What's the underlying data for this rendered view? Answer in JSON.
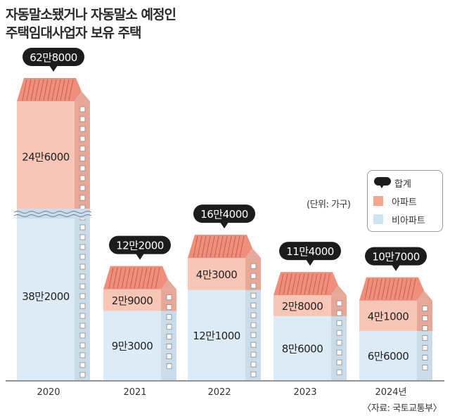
{
  "title_line1": "자동말소됐거나 자동말소 예정인",
  "title_line2": "주택임대사업자 보유 주택",
  "unit_label": "(단위: 가구)",
  "source": "〈자료: 국토교통부〉",
  "legend": {
    "total": "합계",
    "apartment": "아파트",
    "non_apartment": "비아파트"
  },
  "colors": {
    "apartment": "#f7c6b7",
    "non_apartment": "#dcebf5",
    "roof": "#ef8e7a",
    "callout": "#1c1c1c"
  },
  "chart_data": {
    "type": "bar",
    "stacked": true,
    "axis_break": true,
    "categories": [
      "2020",
      "2021",
      "2022",
      "2023",
      "2024년"
    ],
    "series": [
      {
        "name": "비아파트",
        "values": [
          382000,
          93000,
          121000,
          86000,
          66000
        ],
        "labels": [
          "38만2000",
          "9만3000",
          "12만1000",
          "8만6000",
          "6만6000"
        ]
      },
      {
        "name": "아파트",
        "values": [
          246000,
          29000,
          43000,
          28000,
          41000
        ],
        "labels": [
          "24만6000",
          "2만9000",
          "4만3000",
          "2만8000",
          "4만1000"
        ]
      }
    ],
    "totals": [
      628000,
      122000,
      164000,
      114000,
      107000
    ],
    "total_labels": [
      "62만8000",
      "12만2000",
      "16만4000",
      "11만4000",
      "10만7000"
    ]
  }
}
